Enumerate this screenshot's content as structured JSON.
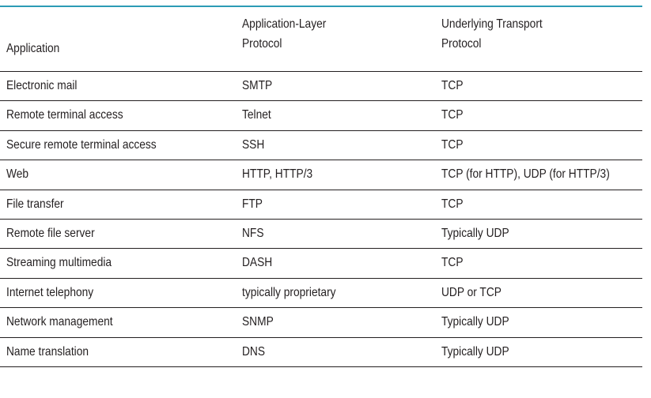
{
  "table": {
    "headers": {
      "application": "Application",
      "app_protocol_line1": "Application-Layer",
      "app_protocol_line2": "Protocol",
      "transport_line1": "Underlying Transport",
      "transport_line2": "Protocol"
    },
    "rows": [
      {
        "application": "Electronic mail",
        "protocol": "SMTP",
        "transport": "TCP"
      },
      {
        "application": "Remote terminal access",
        "protocol": "Telnet",
        "transport": "TCP"
      },
      {
        "application": "Secure remote terminal access",
        "protocol": "SSH",
        "transport": "TCP"
      },
      {
        "application": "Web",
        "protocol": "HTTP, HTTP/3",
        "transport": "TCP (for HTTP), UDP (for HTTP/3)"
      },
      {
        "application": "File transfer",
        "protocol": "FTP",
        "transport": "TCP"
      },
      {
        "application": "Remote file server",
        "protocol": "NFS",
        "transport": "Typically UDP"
      },
      {
        "application": "Streaming multimedia",
        "protocol": "DASH",
        "transport": "TCP"
      },
      {
        "application": "Internet telephony",
        "protocol": "typically proprietary",
        "transport": "UDP or TCP"
      },
      {
        "application": "Network management",
        "protocol": "SNMP",
        "transport": "Typically UDP"
      },
      {
        "application": "Name translation",
        "protocol": "DNS",
        "transport": "Typically UDP"
      }
    ],
    "colors": {
      "top_rule": "#2b9bb5",
      "text": "#231f20",
      "row_rule": "#231f20"
    }
  }
}
